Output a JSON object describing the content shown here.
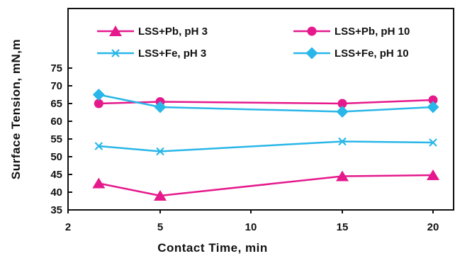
{
  "chart_data": {
    "type": "line",
    "xlabel": "Contact Time, min",
    "ylabel": "Surface Tension, mN,m",
    "x_ticks": [
      "2",
      "5",
      "10",
      "15",
      "20"
    ],
    "y_ticks": [
      "35",
      "40",
      "45",
      "50",
      "55",
      "60",
      "65",
      "70",
      "75"
    ],
    "xlim": [
      2,
      21
    ],
    "ylim": [
      35,
      92
    ],
    "grid": false,
    "legend_position": "top",
    "x": [
      3,
      5,
      15,
      20
    ],
    "series": [
      {
        "name": "LSS+Pb, pH 3",
        "marker": "triangle",
        "color": "#e5198c",
        "values": [
          42.5,
          39,
          44.5,
          44.8
        ]
      },
      {
        "name": "LSS+Pb, pH 10",
        "marker": "circle",
        "color": "#e5198c",
        "values": [
          65,
          65.5,
          65,
          66
        ]
      },
      {
        "name": "LSS+Fe, pH 3",
        "marker": "x",
        "color": "#29b6e8",
        "values": [
          53,
          51.5,
          54.3,
          54
        ]
      },
      {
        "name": "LSS+Fe, pH 10",
        "marker": "diamond",
        "color": "#29b6e8",
        "values": [
          67.5,
          64,
          62.7,
          64
        ]
      }
    ]
  }
}
